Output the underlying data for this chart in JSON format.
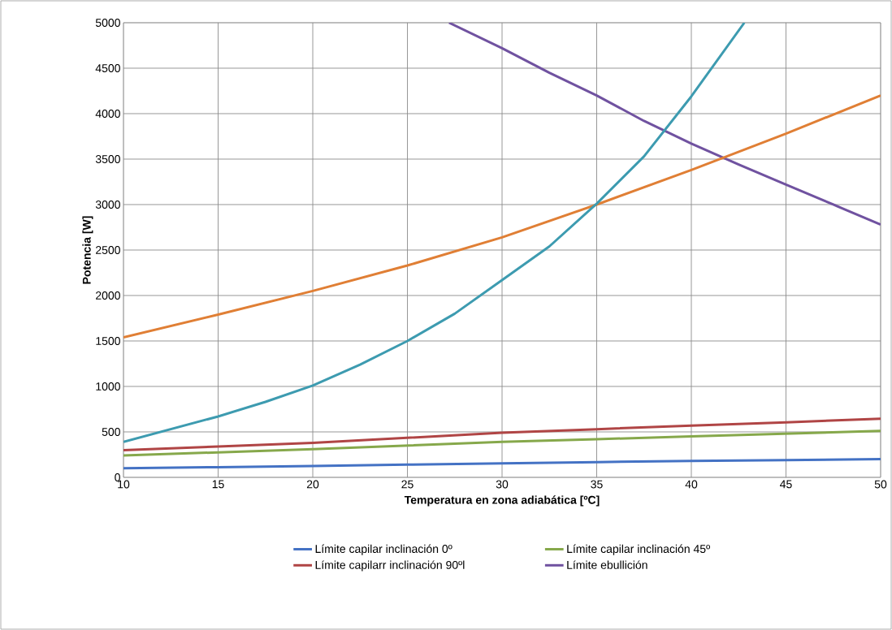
{
  "chart_data": {
    "type": "line",
    "xlabel": "Temperatura en zona adiabática [ºC]",
    "ylabel": "Potencia [W]",
    "xlim": [
      10,
      50
    ],
    "xticks": [
      10,
      15,
      20,
      25,
      30,
      35,
      40,
      45,
      50
    ],
    "ylim": [
      0,
      5000
    ],
    "yticks": [
      0,
      500,
      1000,
      1500,
      2000,
      2500,
      3000,
      3500,
      4000,
      4500,
      5000
    ],
    "grid": true,
    "legend": "bottom",
    "marker": "none",
    "line_style": "solid",
    "x": [
      10,
      15,
      20,
      25,
      30,
      35,
      40,
      45,
      50
    ],
    "series": [
      {
        "name": "Límite capilar inclinación 0º",
        "color": "#4472c4",
        "values": [
          100,
          112,
          125,
          140,
          155,
          168,
          180,
          190,
          200
        ]
      },
      {
        "name": "Límite capilar inclinación 45º",
        "color": "#86a84b",
        "values": [
          240,
          275,
          310,
          350,
          390,
          420,
          450,
          480,
          510
        ]
      },
      {
        "name": "Límite capilarr inclinación 90ºl",
        "color": "#b04545",
        "values": [
          300,
          340,
          380,
          435,
          490,
          530,
          570,
          605,
          645
        ]
      },
      {
        "name": "Límite ebullición",
        "color": "#7052a0",
        "x": [
          27.2,
          30,
          32.5,
          35,
          37.5,
          40,
          42.5,
          45,
          47.5,
          50
        ],
        "values": [
          5000,
          4720,
          4450,
          4200,
          3920,
          3670,
          3440,
          3220,
          3000,
          2780
        ]
      },
      {
        "color": "#e07f35",
        "values": [
          1540,
          1790,
          2050,
          2330,
          2640,
          3000,
          3380,
          3780,
          4200
        ]
      },
      {
        "color": "#3d9bb0",
        "x": [
          10,
          12.5,
          15,
          17.5,
          20,
          22.5,
          25,
          27.5,
          30,
          32.5,
          35,
          37.5,
          40,
          42.8
        ],
        "values": [
          390,
          530,
          670,
          830,
          1010,
          1240,
          1500,
          1800,
          2170,
          2540,
          3010,
          3530,
          4190,
          5000
        ]
      }
    ]
  }
}
